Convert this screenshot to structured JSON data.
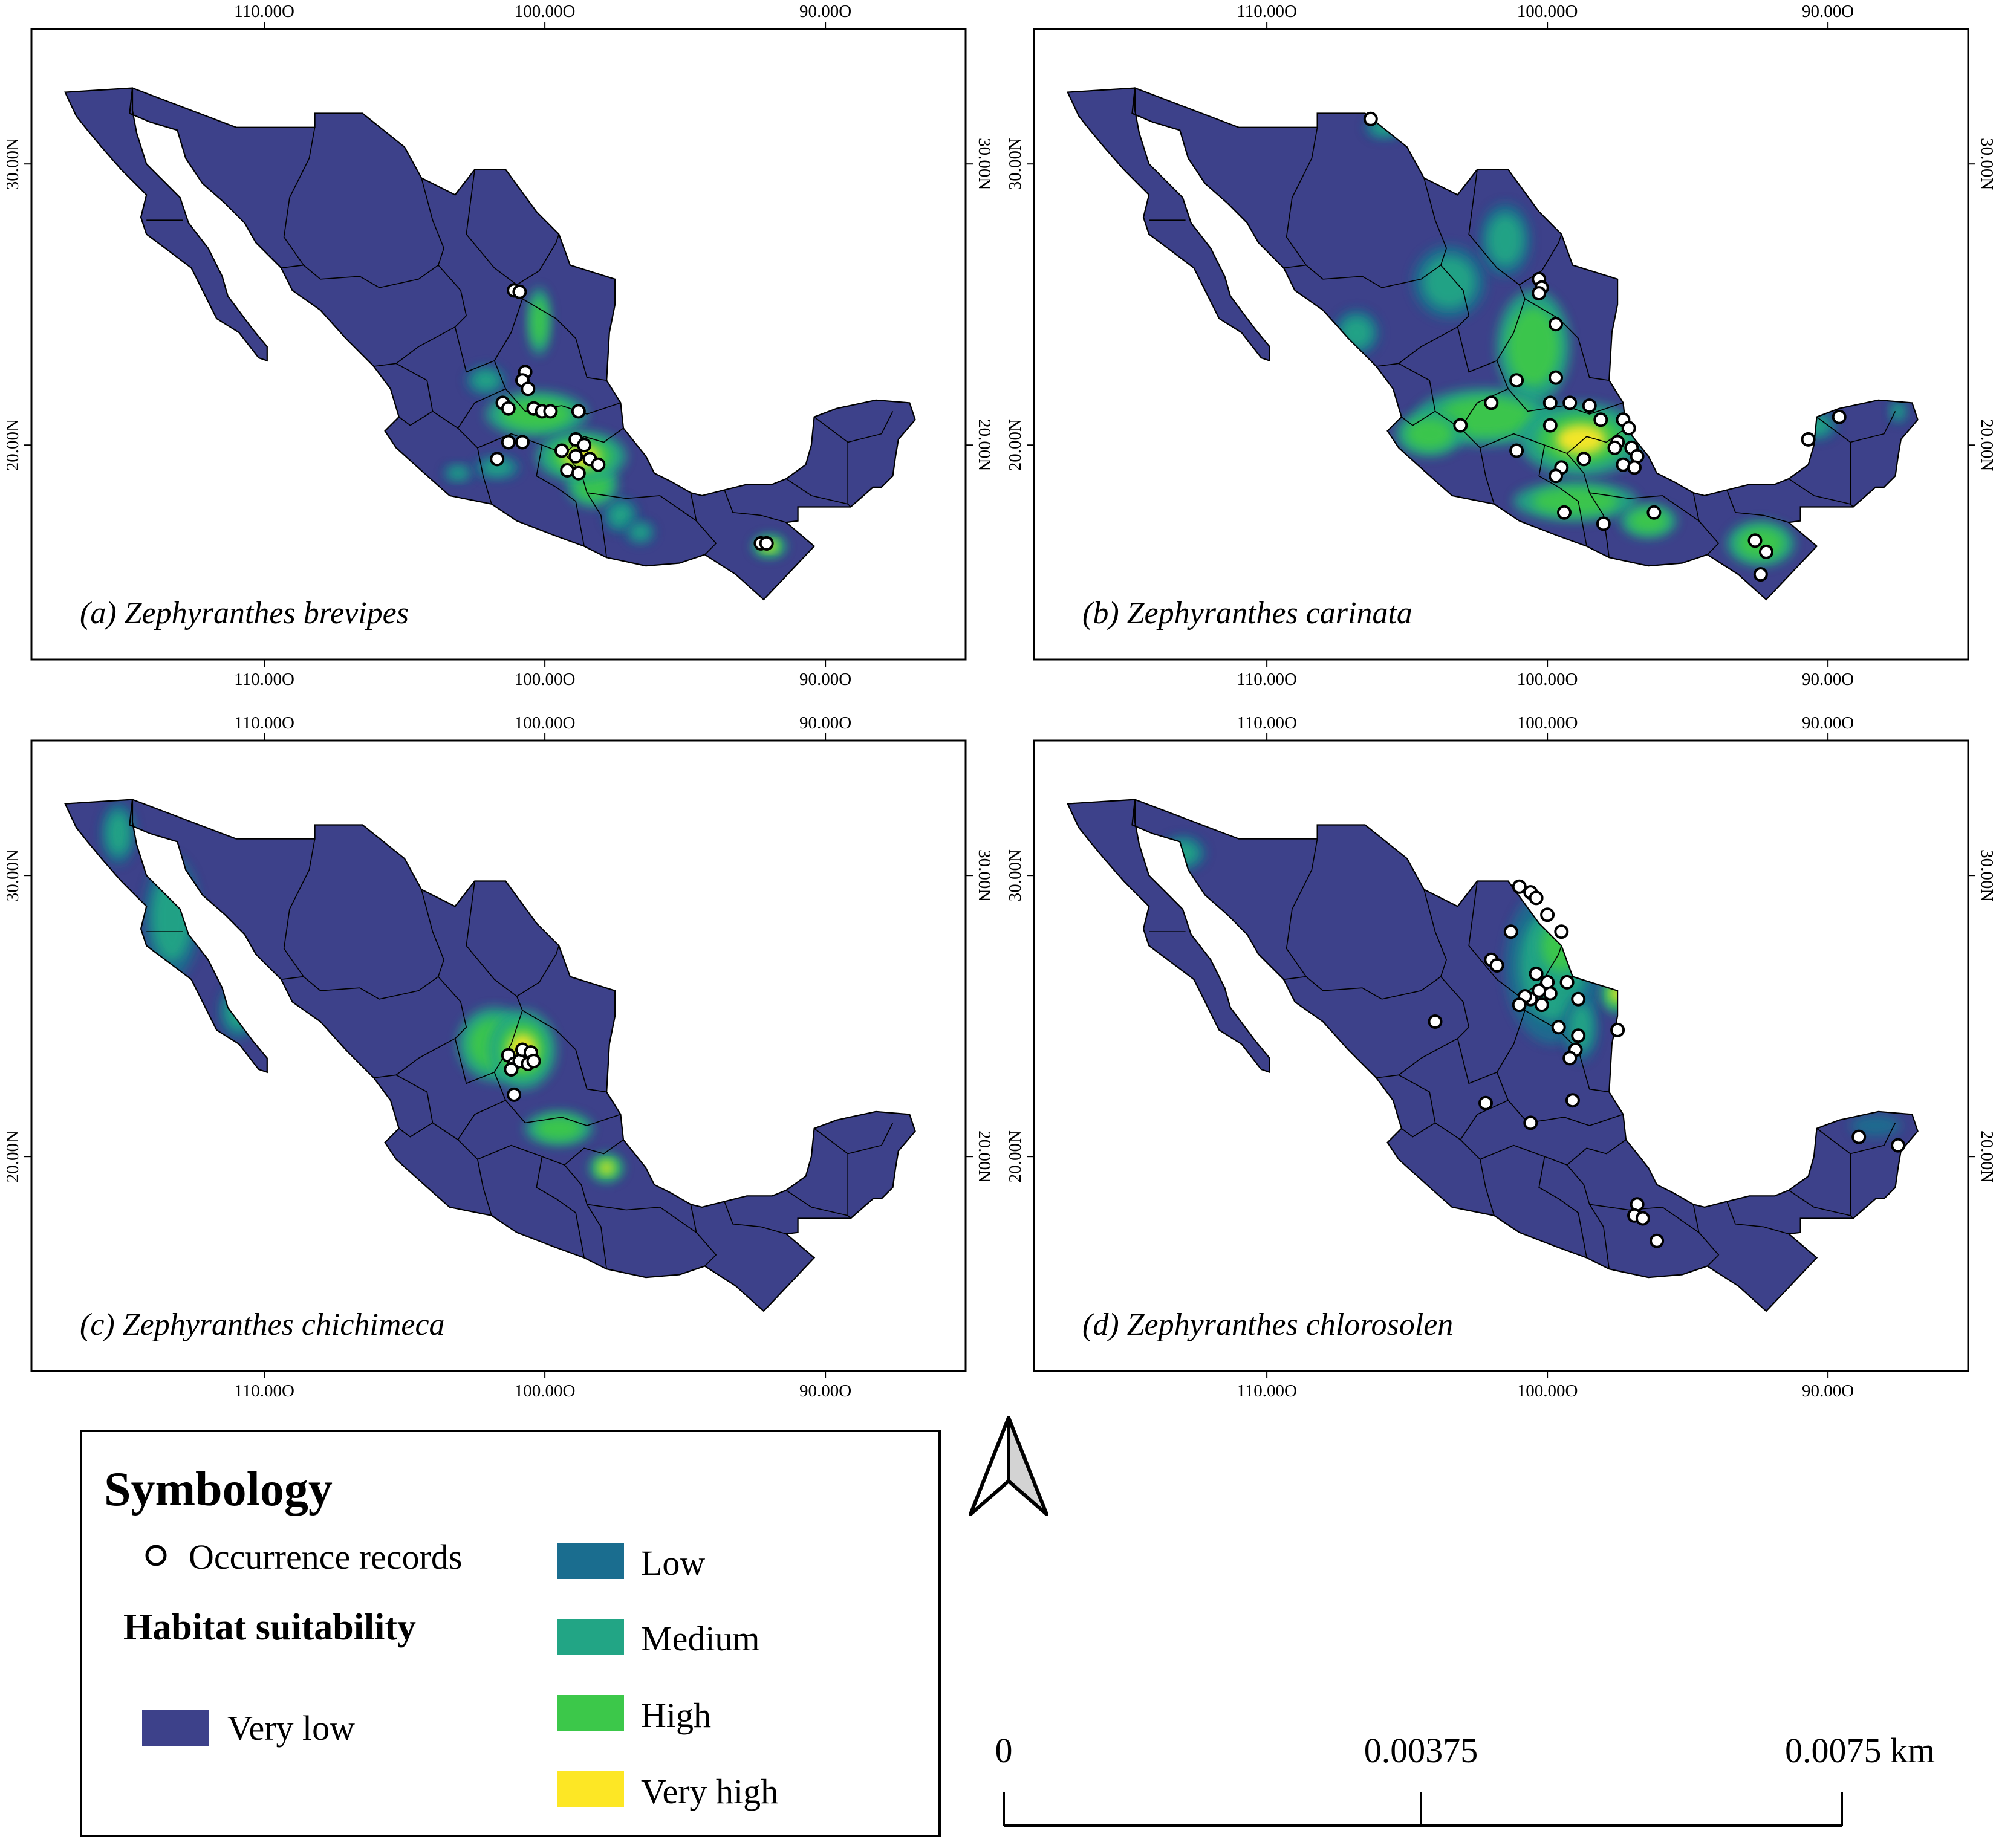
{
  "maps": [
    {
      "id": "a",
      "title": "(a) Zephyranthes brevipes",
      "x_ticks": [
        "110.00O",
        "100.00O",
        "90.00O"
      ],
      "y_ticks": [
        "30.00N",
        "20.00N"
      ],
      "occurrences": [
        [
          -101.1,
          25.5
        ],
        [
          -100.9,
          25.45
        ],
        [
          -100.7,
          22.6
        ],
        [
          -100.8,
          22.3
        ],
        [
          -100.6,
          22.0
        ],
        [
          -101.5,
          21.5
        ],
        [
          -101.3,
          21.3
        ],
        [
          -100.4,
          21.3
        ],
        [
          -100.1,
          21.2
        ],
        [
          -99.8,
          21.2
        ],
        [
          -98.8,
          21.2
        ],
        [
          -101.3,
          20.1
        ],
        [
          -100.8,
          20.1
        ],
        [
          -98.9,
          20.2
        ],
        [
          -98.6,
          20.0
        ],
        [
          -99.4,
          19.8
        ],
        [
          -98.9,
          19.6
        ],
        [
          -98.4,
          19.5
        ],
        [
          -98.1,
          19.3
        ],
        [
          -101.7,
          19.5
        ],
        [
          -99.2,
          19.1
        ],
        [
          -98.8,
          19.0
        ],
        [
          -92.3,
          16.5
        ],
        [
          -92.1,
          16.5
        ]
      ],
      "hotspots": [
        {
          "lon": -98.7,
          "lat": 19.6,
          "rx": 1.6,
          "ry": 0.9,
          "level": "very_high"
        },
        {
          "lon": -100.3,
          "lat": 21.1,
          "rx": 1.8,
          "ry": 0.8,
          "level": "high"
        },
        {
          "lon": -100.2,
          "lat": 24.4,
          "rx": 0.4,
          "ry": 1.2,
          "level": "high"
        },
        {
          "lon": -98.3,
          "lat": 18.6,
          "rx": 0.9,
          "ry": 0.8,
          "level": "high"
        },
        {
          "lon": -97.3,
          "lat": 17.5,
          "rx": 0.6,
          "ry": 0.6,
          "level": "medium"
        },
        {
          "lon": -101.7,
          "lat": 19.2,
          "rx": 0.8,
          "ry": 0.4,
          "level": "medium"
        },
        {
          "lon": -103.1,
          "lat": 19.0,
          "rx": 0.5,
          "ry": 0.3,
          "level": "medium"
        },
        {
          "lon": -92.0,
          "lat": 16.4,
          "rx": 0.6,
          "ry": 0.4,
          "level": "very_high"
        },
        {
          "lon": -102.1,
          "lat": 22.3,
          "rx": 0.7,
          "ry": 0.5,
          "level": "medium"
        },
        {
          "lon": -96.6,
          "lat": 16.9,
          "rx": 0.5,
          "ry": 0.4,
          "level": "medium"
        }
      ]
    },
    {
      "id": "b",
      "title": "(b) Zephyranthes carinata",
      "x_ticks": [
        "110.00O",
        "100.00O",
        "90.00O"
      ],
      "y_ticks": [
        "30.00N",
        "20.00N"
      ],
      "occurrences": [
        [
          -106.3,
          31.6
        ],
        [
          -100.3,
          25.9
        ],
        [
          -100.2,
          25.6
        ],
        [
          -100.3,
          25.4
        ],
        [
          -99.7,
          24.3
        ],
        [
          -99.7,
          22.4
        ],
        [
          -101.1,
          22.3
        ],
        [
          -102.0,
          21.5
        ],
        [
          -103.1,
          20.7
        ],
        [
          -99.9,
          21.5
        ],
        [
          -99.2,
          21.5
        ],
        [
          -98.5,
          21.4
        ],
        [
          -98.1,
          20.9
        ],
        [
          -97.3,
          20.9
        ],
        [
          -97.1,
          20.6
        ],
        [
          -97.5,
          20.1
        ],
        [
          -97.0,
          19.9
        ],
        [
          -96.8,
          19.6
        ],
        [
          -97.3,
          19.3
        ],
        [
          -96.9,
          19.2
        ],
        [
          -97.6,
          19.9
        ],
        [
          -98.7,
          19.5
        ],
        [
          -99.9,
          20.7
        ],
        [
          -101.1,
          19.8
        ],
        [
          -99.5,
          19.2
        ],
        [
          -99.7,
          18.9
        ],
        [
          -99.4,
          17.6
        ],
        [
          -98.0,
          17.2
        ],
        [
          -96.2,
          17.6
        ],
        [
          -92.6,
          16.6
        ],
        [
          -92.2,
          16.2
        ],
        [
          -92.4,
          15.4
        ],
        [
          -90.7,
          20.2
        ],
        [
          -89.6,
          21.0
        ]
      ],
      "hotspots": [
        {
          "lon": -98.8,
          "lat": 20.2,
          "rx": 2.2,
          "ry": 1.3,
          "level": "very_high"
        },
        {
          "lon": -100.5,
          "lat": 23.5,
          "rx": 1.3,
          "ry": 2.0,
          "level": "high"
        },
        {
          "lon": -102.2,
          "lat": 21.0,
          "rx": 2.5,
          "ry": 1.0,
          "level": "high"
        },
        {
          "lon": -104.2,
          "lat": 20.4,
          "rx": 1.2,
          "ry": 0.8,
          "level": "high"
        },
        {
          "lon": -99.0,
          "lat": 18.0,
          "rx": 2.2,
          "ry": 0.7,
          "level": "high"
        },
        {
          "lon": -96.4,
          "lat": 17.3,
          "rx": 1.0,
          "ry": 0.6,
          "level": "high"
        },
        {
          "lon": -92.4,
          "lat": 16.5,
          "rx": 1.2,
          "ry": 0.8,
          "level": "high"
        },
        {
          "lon": -103.5,
          "lat": 25.8,
          "rx": 1.3,
          "ry": 1.3,
          "level": "medium"
        },
        {
          "lon": -101.5,
          "lat": 27.3,
          "rx": 0.9,
          "ry": 1.3,
          "level": "medium"
        },
        {
          "lon": -106.8,
          "lat": 24.0,
          "rx": 0.8,
          "ry": 0.8,
          "level": "medium"
        },
        {
          "lon": -105.8,
          "lat": 31.3,
          "rx": 0.7,
          "ry": 0.4,
          "level": "medium"
        },
        {
          "lon": -90.4,
          "lat": 20.7,
          "rx": 0.7,
          "ry": 0.5,
          "level": "medium"
        },
        {
          "lon": -87.5,
          "lat": 21.2,
          "rx": 0.3,
          "ry": 0.4,
          "level": "medium"
        }
      ]
    },
    {
      "id": "c",
      "title": "(c) Zephyranthes chichimeca",
      "x_ticks": [
        "110.00O",
        "100.00O",
        "90.00O"
      ],
      "y_ticks": [
        "30.00N",
        "20.00N"
      ],
      "occurrences": [
        [
          -101.3,
          23.6
        ],
        [
          -101.1,
          23.3
        ],
        [
          -100.9,
          23.4
        ],
        [
          -100.8,
          23.8
        ],
        [
          -100.5,
          23.7
        ],
        [
          -100.6,
          23.3
        ],
        [
          -100.4,
          23.4
        ],
        [
          -101.2,
          23.1
        ],
        [
          -101.1,
          22.2
        ]
      ],
      "hotspots": [
        {
          "lon": -100.8,
          "lat": 23.8,
          "rx": 1.2,
          "ry": 1.4,
          "level": "very_high"
        },
        {
          "lon": -101.8,
          "lat": 24.0,
          "rx": 1.3,
          "ry": 1.3,
          "level": "high"
        },
        {
          "lon": -99.5,
          "lat": 21.0,
          "rx": 1.2,
          "ry": 0.6,
          "level": "high"
        },
        {
          "lon": -97.8,
          "lat": 19.6,
          "rx": 0.6,
          "ry": 0.5,
          "level": "very_high"
        },
        {
          "lon": -113.3,
          "lat": 28.5,
          "rx": 1.0,
          "ry": 2.2,
          "level": "medium"
        },
        {
          "lon": -115.2,
          "lat": 31.5,
          "rx": 0.6,
          "ry": 1.1,
          "level": "medium"
        },
        {
          "lon": -110.9,
          "lat": 25.2,
          "rx": 0.7,
          "ry": 1.0,
          "level": "medium"
        }
      ]
    },
    {
      "id": "d",
      "title": "(d) Zephyranthes chlorosolen",
      "x_ticks": [
        "110.00O",
        "100.00O",
        "90.00O"
      ],
      "y_ticks": [
        "30.00N",
        "20.00N"
      ],
      "occurrences": [
        [
          -101.0,
          29.6
        ],
        [
          -100.6,
          29.4
        ],
        [
          -100.4,
          29.2
        ],
        [
          -100.0,
          28.6
        ],
        [
          -99.5,
          28.0
        ],
        [
          -101.3,
          28.0
        ],
        [
          -102.0,
          27.0
        ],
        [
          -101.8,
          26.8
        ],
        [
          -100.4,
          26.5
        ],
        [
          -100.0,
          26.2
        ],
        [
          -99.9,
          25.8
        ],
        [
          -100.3,
          25.9
        ],
        [
          -100.6,
          25.6
        ],
        [
          -100.8,
          25.7
        ],
        [
          -101.0,
          25.4
        ],
        [
          -100.2,
          25.4
        ],
        [
          -99.3,
          26.2
        ],
        [
          -98.9,
          25.6
        ],
        [
          -99.6,
          24.6
        ],
        [
          -98.9,
          24.3
        ],
        [
          -99.0,
          23.8
        ],
        [
          -99.2,
          23.5
        ],
        [
          -97.5,
          24.5
        ],
        [
          -104.0,
          24.8
        ],
        [
          -102.2,
          21.9
        ],
        [
          -100.6,
          21.2
        ],
        [
          -99.1,
          22.0
        ],
        [
          -96.8,
          18.3
        ],
        [
          -96.9,
          17.9
        ],
        [
          -96.6,
          17.8
        ],
        [
          -96.1,
          17.0
        ],
        [
          -88.9,
          20.7
        ],
        [
          -87.5,
          20.4
        ]
      ],
      "hotspots": [
        {
          "lon": -99.8,
          "lat": 26.8,
          "rx": 1.7,
          "ry": 2.8,
          "level": "medium"
        },
        {
          "lon": -99.5,
          "lat": 27.5,
          "rx": 1.0,
          "ry": 1.3,
          "level": "high"
        },
        {
          "lon": -97.5,
          "lat": 25.8,
          "rx": 0.6,
          "ry": 0.7,
          "level": "very_high"
        },
        {
          "lon": -98.8,
          "lat": 24.6,
          "rx": 0.6,
          "ry": 1.2,
          "level": "medium"
        },
        {
          "lon": -113.0,
          "lat": 30.8,
          "rx": 0.8,
          "ry": 0.6,
          "level": "medium"
        },
        {
          "lon": -88.3,
          "lat": 21.1,
          "rx": 0.9,
          "ry": 0.4,
          "level": "low"
        }
      ]
    }
  ],
  "legend": {
    "title": "Symbology",
    "occurrence_label": "Occurrence records",
    "habitat_title": "Habitat suitability",
    "classes": [
      {
        "key": "very_low",
        "label": "Very low",
        "color": "#3d418a"
      },
      {
        "key": "low",
        "label": "Low",
        "color": "#1a6d8f"
      },
      {
        "key": "medium",
        "label": "Medium",
        "color": "#22a585"
      },
      {
        "key": "high",
        "label": "High",
        "color": "#3cc84a"
      },
      {
        "key": "very_high",
        "label": "Very high",
        "color": "#fde725"
      }
    ]
  },
  "scale_bar": {
    "labels": [
      "0",
      "0.00375",
      "0.0075 km"
    ]
  },
  "north_arrow": {
    "icon": "north-arrow-icon"
  },
  "colors": {
    "ocean": "#ffffff",
    "border": "#000000",
    "frame": "#000000",
    "point_fill": "#ffffff"
  }
}
